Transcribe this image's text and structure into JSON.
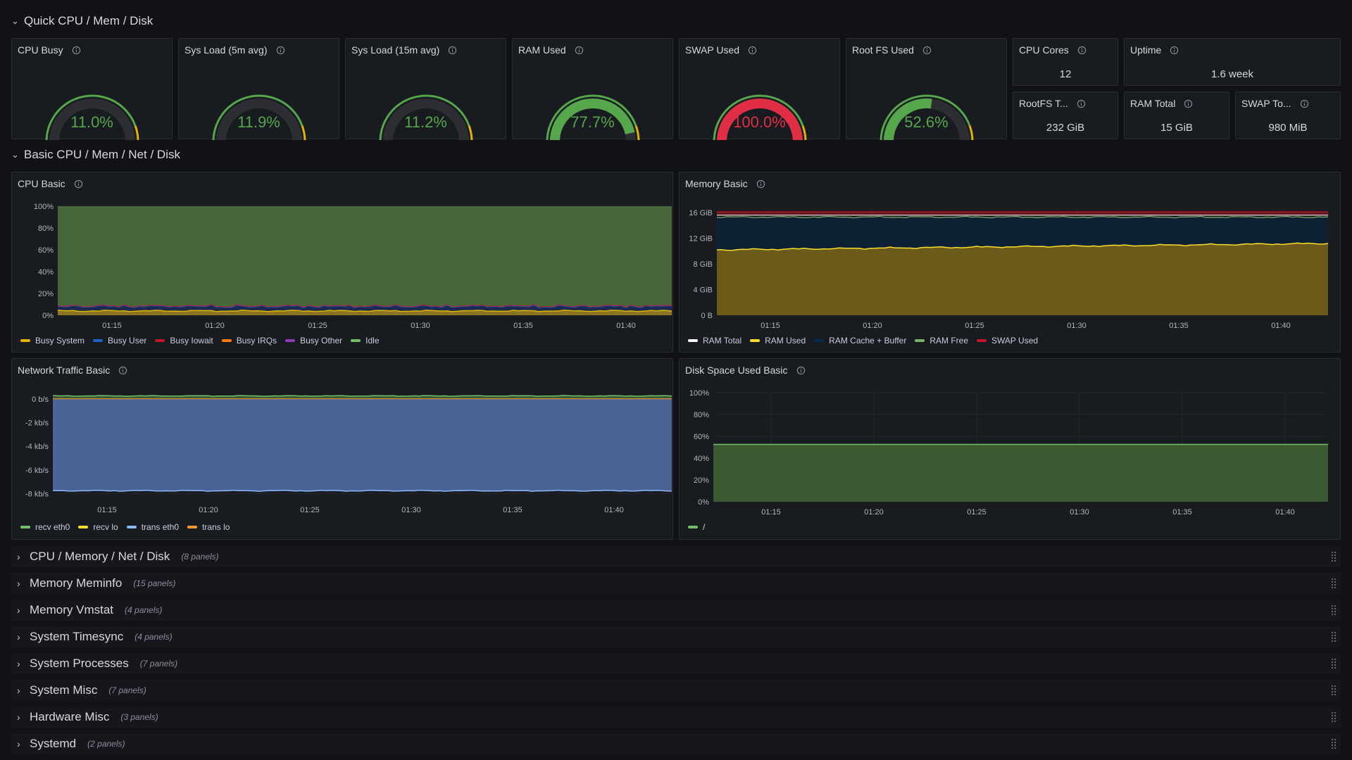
{
  "rows": {
    "quick": "Quick CPU / Mem / Disk",
    "basic": "Basic CPU / Mem / Net / Disk"
  },
  "gauges": [
    {
      "title": "CPU Busy",
      "value": "11.0%",
      "level": 0.11,
      "color": "#56a64b"
    },
    {
      "title": "Sys Load (5m avg)",
      "value": "11.9%",
      "level": 0.119,
      "color": "#56a64b"
    },
    {
      "title": "Sys Load (15m avg)",
      "value": "11.2%",
      "level": 0.112,
      "color": "#56a64b"
    },
    {
      "title": "RAM Used",
      "value": "77.7%",
      "level": 0.777,
      "color": "#56a64b"
    },
    {
      "title": "SWAP Used",
      "value": "100.0%",
      "level": 1.0,
      "color": "#e02f44"
    },
    {
      "title": "Root FS Used",
      "value": "52.6%",
      "level": 0.526,
      "color": "#56a64b"
    }
  ],
  "stats": {
    "cpu_cores": {
      "title": "CPU Cores",
      "value": "12"
    },
    "uptime": {
      "title": "Uptime",
      "value": "1.6 week"
    },
    "rootfs_total": {
      "title": "RootFS T...",
      "value": "232 GiB"
    },
    "ram_total": {
      "title": "RAM Total",
      "value": "15 GiB"
    },
    "swap_total": {
      "title": "SWAP To...",
      "value": "980 MiB"
    }
  },
  "panels": {
    "cpu_basic": "CPU Basic",
    "memory_basic": "Memory Basic",
    "network_basic": "Network Traffic Basic",
    "disk_basic": "Disk Space Used Basic"
  },
  "legends": {
    "cpu": [
      {
        "label": "Busy System",
        "color": "#e0b400"
      },
      {
        "label": "Busy User",
        "color": "#1f60c4"
      },
      {
        "label": "Busy Iowait",
        "color": "#c4162a"
      },
      {
        "label": "Busy IRQs",
        "color": "#ff780a"
      },
      {
        "label": "Busy Other",
        "color": "#8f3bb8"
      },
      {
        "label": "Idle",
        "color": "#73bf69"
      }
    ],
    "memory": [
      {
        "label": "RAM Total",
        "color": "#ffffff"
      },
      {
        "label": "RAM Used",
        "color": "#fade2a"
      },
      {
        "label": "RAM Cache + Buffer",
        "color": "#052b51"
      },
      {
        "label": "RAM Free",
        "color": "#7eb26d"
      },
      {
        "label": "SWAP Used",
        "color": "#c4162a"
      }
    ],
    "network": [
      {
        "label": "recv eth0",
        "color": "#73bf69"
      },
      {
        "label": "recv lo",
        "color": "#fade2a"
      },
      {
        "label": "trans eth0",
        "color": "#8ab8ff"
      },
      {
        "label": "trans lo",
        "color": "#ff9830"
      }
    ],
    "disk": [
      {
        "label": "/",
        "color": "#73bf69"
      }
    ]
  },
  "chart_data": [
    {
      "type": "area",
      "title": "CPU Basic",
      "x": [
        "01:15",
        "01:20",
        "01:25",
        "01:30",
        "01:35",
        "01:40"
      ],
      "y_ticks": [
        "0%",
        "20%",
        "40%",
        "60%",
        "80%",
        "100%"
      ],
      "ylim": [
        0,
        100
      ],
      "series": [
        {
          "name": "Busy System",
          "approx": 4
        },
        {
          "name": "Busy User",
          "approx": 6
        },
        {
          "name": "Busy Iowait",
          "approx": 0.5
        },
        {
          "name": "Idle",
          "approx": 89
        }
      ]
    },
    {
      "type": "area",
      "title": "Memory Basic",
      "x": [
        "01:15",
        "01:20",
        "01:25",
        "01:30",
        "01:35",
        "01:40"
      ],
      "y_ticks": [
        "0 B",
        "4 GiB",
        "8 GiB",
        "12 GiB",
        "16 GiB"
      ],
      "ylim": [
        0,
        17
      ],
      "series": [
        {
          "name": "RAM Total",
          "approx": 15.5
        },
        {
          "name": "RAM Used",
          "approx": 11
        },
        {
          "name": "RAM Cache + Buffer",
          "approx": 4
        },
        {
          "name": "SWAP Used",
          "approx": 0.9
        }
      ]
    },
    {
      "type": "area",
      "title": "Network Traffic Basic",
      "x": [
        "01:15",
        "01:20",
        "01:25",
        "01:30",
        "01:35",
        "01:40"
      ],
      "y_ticks": [
        "0 b/s",
        "-2 kb/s",
        "-4 kb/s",
        "-6 kb/s",
        "-8 kb/s"
      ],
      "ylim": [
        -8.5,
        0.7
      ],
      "series": [
        {
          "name": "recv eth0",
          "approx": 0.2
        },
        {
          "name": "trans eth0",
          "approx": -7.8
        }
      ]
    },
    {
      "type": "area",
      "title": "Disk Space Used Basic",
      "x": [
        "01:15",
        "01:20",
        "01:25",
        "01:30",
        "01:35",
        "01:40"
      ],
      "y_ticks": [
        "0%",
        "20%",
        "40%",
        "60%",
        "80%",
        "100%"
      ],
      "ylim": [
        0,
        100
      ],
      "series": [
        {
          "name": "/",
          "approx": 52.6
        }
      ]
    }
  ],
  "collapsed_rows": [
    {
      "title": "CPU / Memory / Net / Disk",
      "count": "(8 panels)"
    },
    {
      "title": "Memory Meminfo",
      "count": "(15 panels)"
    },
    {
      "title": "Memory Vmstat",
      "count": "(4 panels)"
    },
    {
      "title": "System Timesync",
      "count": "(4 panels)"
    },
    {
      "title": "System Processes",
      "count": "(7 panels)"
    },
    {
      "title": "System Misc",
      "count": "(7 panels)"
    },
    {
      "title": "Hardware Misc",
      "count": "(3 panels)"
    },
    {
      "title": "Systemd",
      "count": "(2 panels)"
    }
  ]
}
